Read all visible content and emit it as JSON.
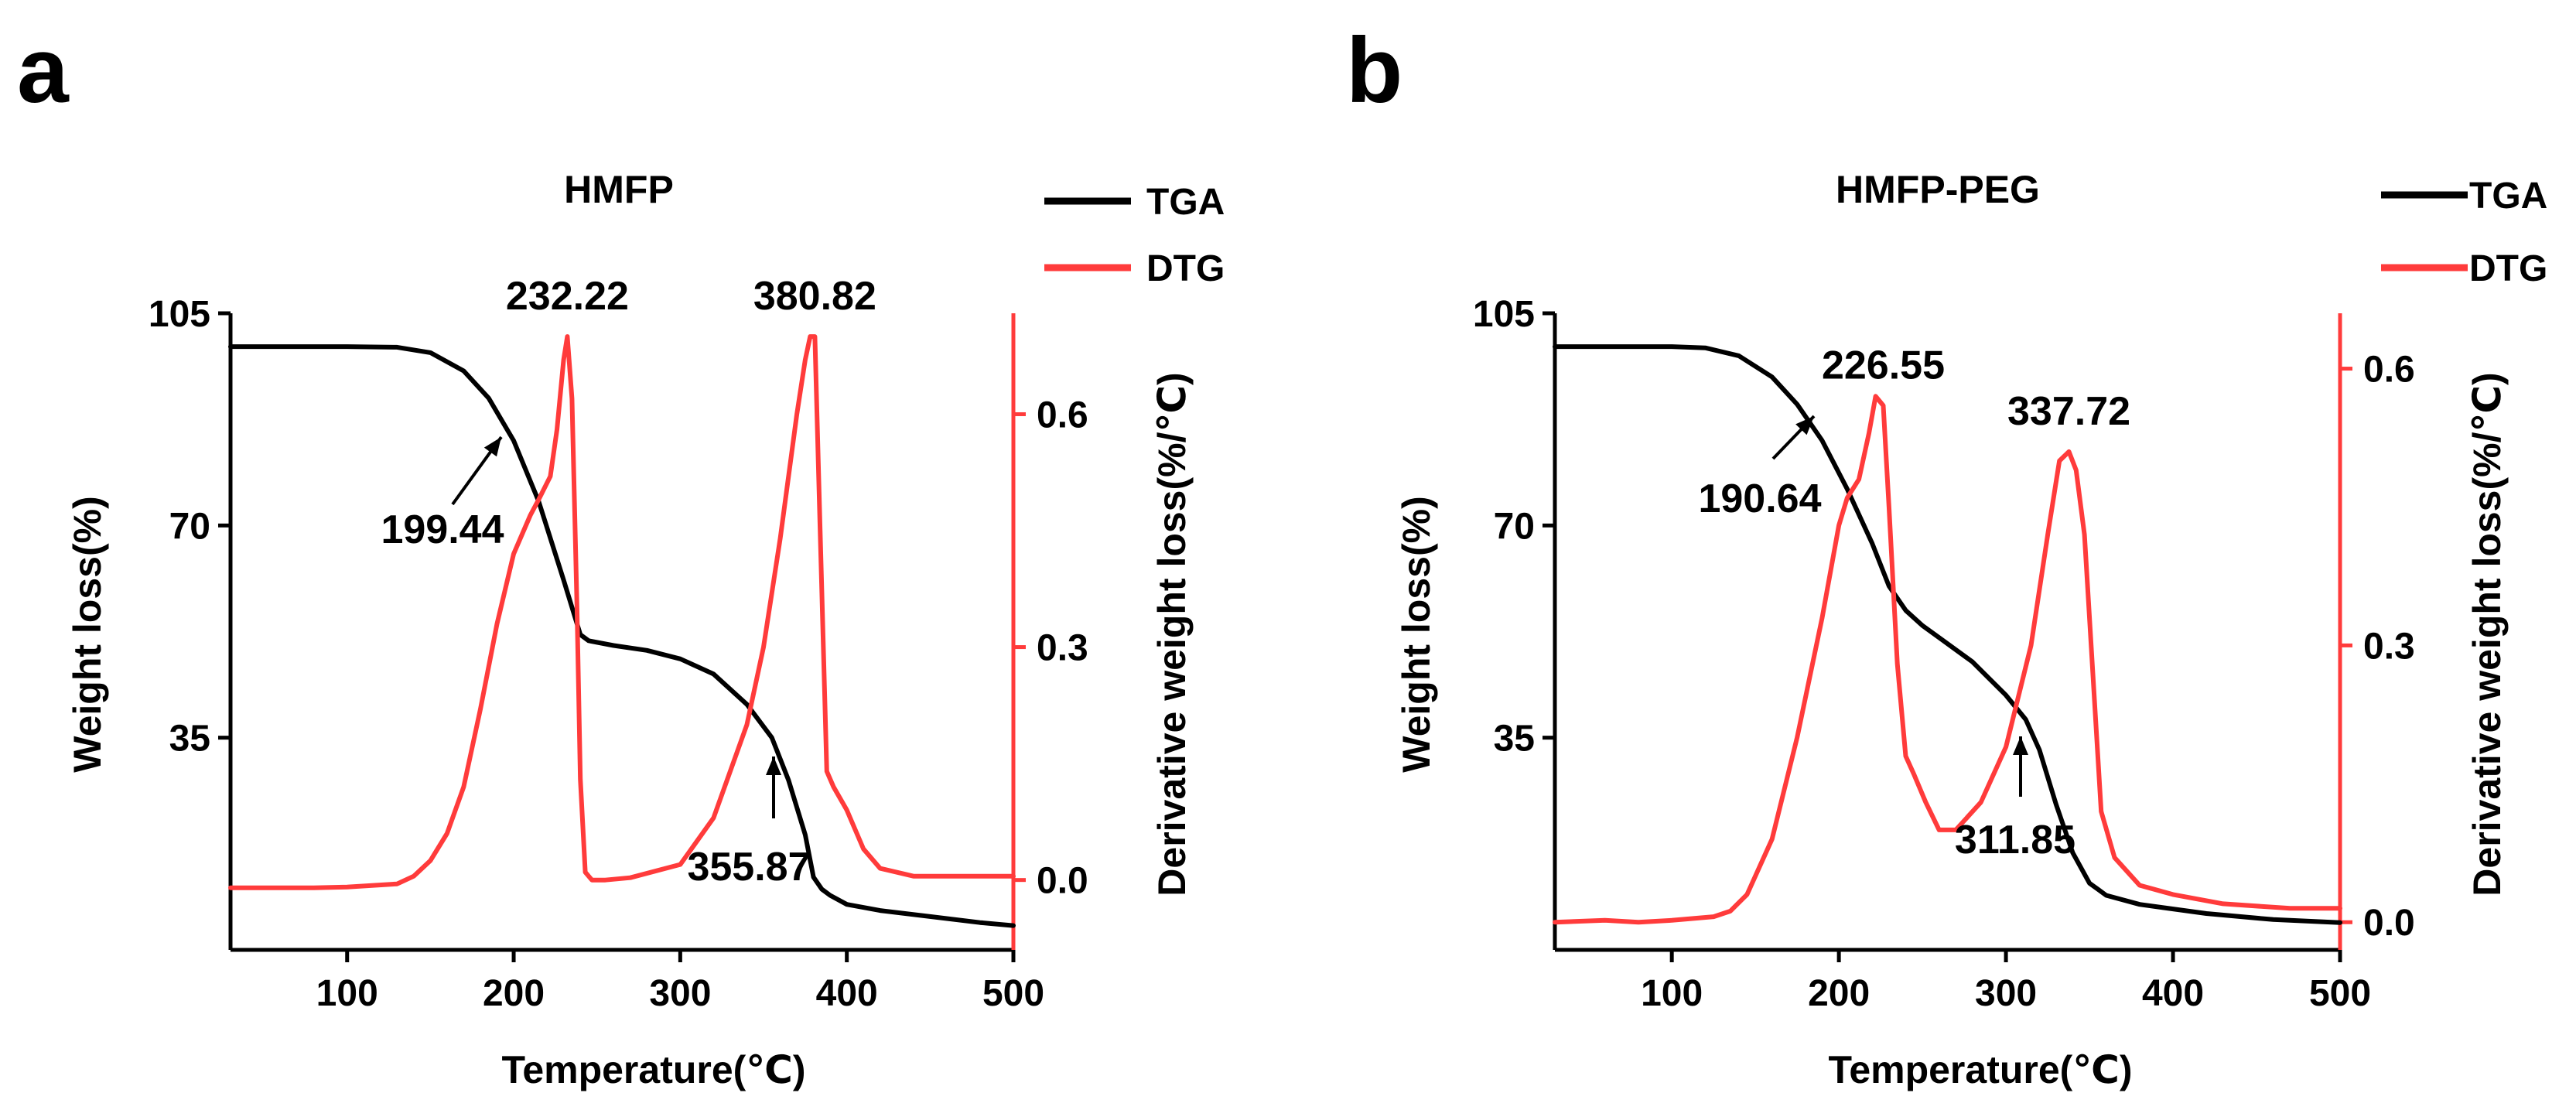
{
  "colors": {
    "tga": "#000000",
    "dtg": "#ff3b3b",
    "axis": "#000000"
  },
  "chart_data": [
    {
      "panel_label": "a",
      "type": "line",
      "title": "HMFP",
      "xlabel": "Temperature(℃)",
      "ylabel": "Weight loss(%)",
      "y2label": "Derivative weight loss(%/℃)",
      "xlim": [
        30,
        500
      ],
      "ylim": [
        0,
        105
      ],
      "y2lim": [
        -0.09,
        0.73
      ],
      "xticks": [
        100,
        200,
        300,
        400,
        500
      ],
      "yticks": [
        35,
        70,
        105
      ],
      "y2ticks": [
        0.0,
        0.3,
        0.6
      ],
      "x2ticklabels": [
        "100",
        "200",
        "300",
        "400",
        "500"
      ],
      "ytick_labels": [
        "35",
        "70",
        "105"
      ],
      "y2tick_labels": [
        "0.0",
        "0.3",
        "0.6"
      ],
      "legend": {
        "position": "top-right",
        "entries": [
          "TGA",
          "DTG"
        ]
      },
      "series": [
        {
          "name": "TGA",
          "axis": "left",
          "x": [
            30,
            60,
            100,
            130,
            150,
            170,
            185,
            200,
            215,
            230,
            240,
            245,
            260,
            280,
            300,
            320,
            340,
            355,
            365,
            375,
            380,
            385,
            390,
            400,
            420,
            450,
            480,
            500
          ],
          "y": [
            99.5,
            99.5,
            99.5,
            99.4,
            98.5,
            95.5,
            91,
            84,
            74,
            61,
            52,
            51,
            50.2,
            49.4,
            48,
            45.5,
            40.5,
            35,
            28,
            19,
            12,
            10,
            9,
            7.5,
            6.5,
            5.5,
            4.5,
            4.0
          ]
        },
        {
          "name": "DTG",
          "axis": "right",
          "x": [
            30,
            80,
            100,
            130,
            140,
            150,
            160,
            170,
            180,
            190,
            200,
            210,
            215,
            222,
            226,
            230,
            232.22,
            235,
            238,
            240,
            243,
            247,
            255,
            270,
            300,
            320,
            340,
            350,
            360,
            370,
            375,
            378,
            380.82,
            384,
            388,
            392,
            400,
            410,
            420,
            440,
            470,
            500
          ],
          "y": [
            -0.01,
            -0.01,
            -0.009,
            -0.005,
            0.005,
            0.025,
            0.06,
            0.12,
            0.22,
            0.33,
            0.42,
            0.47,
            0.49,
            0.52,
            0.58,
            0.67,
            0.7,
            0.62,
            0.35,
            0.13,
            0.01,
            0.0,
            0.0,
            0.003,
            0.02,
            0.08,
            0.2,
            0.3,
            0.44,
            0.6,
            0.67,
            0.7,
            0.7,
            0.45,
            0.14,
            0.12,
            0.09,
            0.04,
            0.015,
            0.005,
            0.005,
            0.005
          ]
        }
      ],
      "annotations": [
        {
          "label": "232.22",
          "x": 232.22,
          "arrow": false
        },
        {
          "label": "380.82",
          "x": 380.82,
          "arrow": false
        },
        {
          "label": "199.44",
          "x": 199.44,
          "arrow": true
        },
        {
          "label": "355.87",
          "x": 355.87,
          "arrow": true
        }
      ]
    },
    {
      "panel_label": "b",
      "type": "line",
      "title": "HMFP-PEG",
      "xlabel": "Temperature(℃)",
      "ylabel": "Weight loss(%)",
      "y2label": "Derivative weight loss(%/℃)",
      "xlim": [
        30,
        500
      ],
      "ylim": [
        0,
        105
      ],
      "y2lim": [
        -0.03,
        0.66
      ],
      "xticks": [
        100,
        200,
        300,
        400,
        500
      ],
      "yticks": [
        35,
        70,
        105
      ],
      "y2ticks": [
        0.0,
        0.3,
        0.6
      ],
      "x2ticklabels": [
        "100",
        "200",
        "300",
        "400",
        "500"
      ],
      "ytick_labels": [
        "35",
        "70",
        "105"
      ],
      "y2tick_labels": [
        "0.0",
        "0.3",
        "0.6"
      ],
      "legend": {
        "position": "top-right",
        "entries": [
          "TGA",
          "DTG"
        ]
      },
      "series": [
        {
          "name": "TGA",
          "axis": "left",
          "x": [
            30,
            60,
            100,
            120,
            140,
            160,
            175,
            190,
            205,
            220,
            230,
            240,
            250,
            260,
            280,
            300,
            311.85,
            320,
            330,
            340,
            350,
            355,
            360,
            380,
            420,
            460,
            500
          ],
          "y": [
            99.5,
            99.5,
            99.5,
            99.3,
            98,
            94.5,
            90,
            84,
            76,
            67,
            60,
            56,
            53.5,
            51.5,
            47.5,
            42,
            38,
            33,
            24,
            16,
            11,
            10,
            9,
            7.5,
            6,
            5,
            4.5
          ]
        },
        {
          "name": "DTG",
          "axis": "right",
          "x": [
            30,
            60,
            80,
            100,
            125,
            135,
            145,
            160,
            175,
            190,
            200,
            205,
            212,
            218,
            222,
            226.55,
            230,
            235,
            240,
            245,
            252,
            260,
            270,
            285,
            300,
            315,
            325,
            332,
            337.72,
            342,
            347,
            352,
            357,
            365,
            380,
            400,
            430,
            470,
            500
          ],
          "y": [
            0.0,
            0.002,
            0.0,
            0.002,
            0.006,
            0.012,
            0.03,
            0.09,
            0.2,
            0.33,
            0.43,
            0.46,
            0.48,
            0.53,
            0.57,
            0.56,
            0.45,
            0.28,
            0.18,
            0.16,
            0.13,
            0.1,
            0.1,
            0.13,
            0.19,
            0.3,
            0.42,
            0.5,
            0.51,
            0.49,
            0.42,
            0.27,
            0.12,
            0.07,
            0.04,
            0.03,
            0.02,
            0.015,
            0.015
          ]
        }
      ],
      "annotations": [
        {
          "label": "226.55",
          "x": 226.55,
          "arrow": false
        },
        {
          "label": "337.72",
          "x": 337.72,
          "arrow": false
        },
        {
          "label": "190.64",
          "x": 190.64,
          "arrow": true
        },
        {
          "label": "311.85",
          "x": 311.85,
          "arrow": true
        }
      ]
    }
  ]
}
